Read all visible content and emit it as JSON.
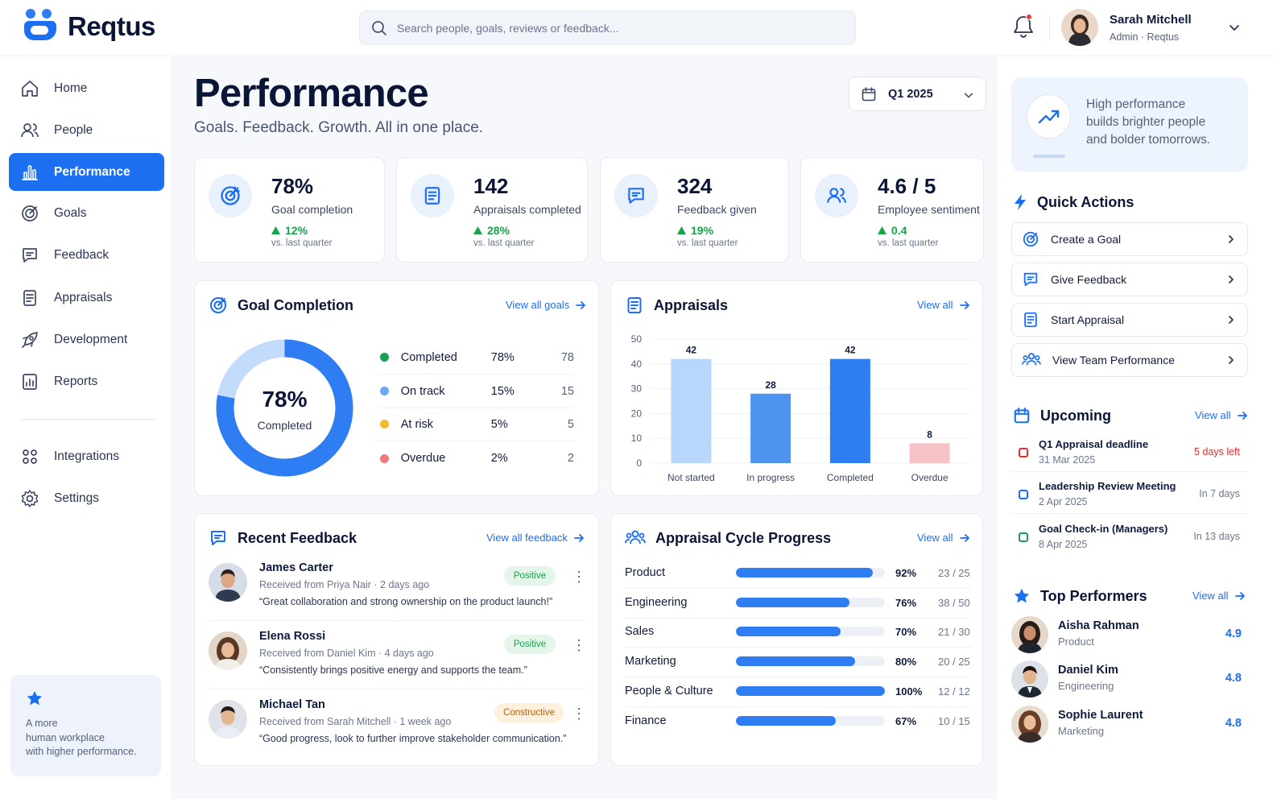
{
  "app": {
    "name": "Reqtus"
  },
  "search": {
    "placeholder": "Search people, goals, reviews or feedback..."
  },
  "user": {
    "name": "Sarah Mitchell",
    "role": "Admin",
    "org": "Reqtus",
    "role_line": "Admin · Reqtus"
  },
  "nav": {
    "items": [
      {
        "label": "Home",
        "icon": "home-icon"
      },
      {
        "label": "People",
        "icon": "people-icon"
      },
      {
        "label": "Performance",
        "icon": "bar-chart-icon",
        "active": true
      },
      {
        "label": "Goals",
        "icon": "target-icon"
      },
      {
        "label": "Feedback",
        "icon": "chat-icon"
      },
      {
        "label": "Appraisals",
        "icon": "document-icon"
      },
      {
        "label": "Development",
        "icon": "rocket-icon"
      },
      {
        "label": "Reports",
        "icon": "report-icon"
      },
      {
        "label": "Integrations",
        "icon": "integrations-icon"
      },
      {
        "label": "Settings",
        "icon": "gear-icon"
      }
    ],
    "promo": "A more\nhuman workplace\nwith higher performance."
  },
  "page": {
    "title": "Performance",
    "subtitle": "Goals. Feedback. Growth. All in one place.",
    "period": "Q1 2025"
  },
  "stats": [
    {
      "value": "78%",
      "label": "Goal completion",
      "delta": "12%",
      "vs": "vs. last quarter",
      "icon": "target-icon"
    },
    {
      "value": "142",
      "label": "Appraisals completed",
      "delta": "28%",
      "vs": "vs. last quarter",
      "icon": "document-icon"
    },
    {
      "value": "324",
      "label": "Feedback given",
      "delta": "19%",
      "vs": "vs. last quarter",
      "icon": "chat-icon"
    },
    {
      "value": "4.6 / 5",
      "label": "Employee sentiment",
      "delta": "0.4",
      "vs": "vs. last quarter",
      "icon": "people-icon"
    }
  ],
  "goal_completion": {
    "title": "Goal Completion",
    "link": "View all goals",
    "center_value": "78%",
    "center_label": "Completed",
    "rows": [
      {
        "name": "Completed",
        "pct": "78%",
        "count": "78",
        "color": "#1f9d55"
      },
      {
        "name": "On track",
        "pct": "15%",
        "count": "15",
        "color": "#6aa8f5"
      },
      {
        "name": "At risk",
        "pct": "5%",
        "count": "5",
        "color": "#f5b82e"
      },
      {
        "name": "Overdue",
        "pct": "2%",
        "count": "2",
        "color": "#f27a7a"
      }
    ],
    "donut": {
      "completed": 78,
      "on_track": 15,
      "at_risk": 5,
      "overdue": 2,
      "primary_color": "#2f7df3",
      "secondary_color": "#c3dcfb"
    }
  },
  "appraisals": {
    "title": "Appraisals",
    "link": "View all"
  },
  "chart_data": {
    "type": "bar",
    "categories": [
      "Not started",
      "In progress",
      "Completed",
      "Overdue"
    ],
    "values": [
      42,
      28,
      42,
      8
    ],
    "colors": [
      "#b9d7fb",
      "#4d93f0",
      "#2f7df3",
      "#f7c3c6"
    ],
    "ylim": [
      0,
      50
    ],
    "yticks": [
      "0",
      "10",
      "20",
      "30",
      "40",
      "50"
    ],
    "title": "",
    "xlabel": "",
    "ylabel": "",
    "grid": true
  },
  "feedback": {
    "title": "Recent Feedback",
    "link": "View all feedback",
    "items": [
      {
        "name": "James Carter",
        "meta": "Received from Priya Nair · 2 days ago",
        "quote": "“Great collaboration and strong ownership on the product launch!”",
        "badge": "Positive"
      },
      {
        "name": "Elena Rossi",
        "meta": "Received from Daniel Kim · 4 days ago",
        "quote": "“Consistently brings positive energy and supports the team.”",
        "badge": "Positive"
      },
      {
        "name": "Michael Tan",
        "meta": "Received from Sarah Mitchell · 1 week ago",
        "quote": "“Good progress, look to further improve stakeholder communication.”",
        "badge": "Constructive"
      }
    ]
  },
  "cycle": {
    "title": "Appraisal Cycle Progress",
    "link": "View all",
    "rows": [
      {
        "name": "Product",
        "pct": "92%",
        "progress": 92,
        "count": "23 / 25"
      },
      {
        "name": "Engineering",
        "pct": "76%",
        "progress": 76,
        "count": "38 / 50"
      },
      {
        "name": "Sales",
        "pct": "70%",
        "progress": 70,
        "count": "21 / 30"
      },
      {
        "name": "Marketing",
        "pct": "80%",
        "progress": 80,
        "count": "20 / 25"
      },
      {
        "name": "People & Culture",
        "pct": "100%",
        "progress": 100,
        "count": "12 / 12"
      },
      {
        "name": "Finance",
        "pct": "67%",
        "progress": 67,
        "count": "10 / 15"
      }
    ]
  },
  "right": {
    "hero": "High performance\nbuilds brighter people\nand bolder tomorrows.",
    "quick_actions_title": "Quick Actions",
    "quick_actions": [
      {
        "label": "Create a Goal",
        "icon": "target-icon"
      },
      {
        "label": "Give Feedback",
        "icon": "chat-icon"
      },
      {
        "label": "Start Appraisal",
        "icon": "document-icon"
      },
      {
        "label": "View Team Performance",
        "icon": "people-icon"
      }
    ],
    "upcoming_title": "Upcoming",
    "upcoming_link": "View all",
    "upcoming": [
      {
        "title": "Q1 Appraisal deadline",
        "date": "31 Mar 2025",
        "due": "5 days left",
        "color": "#e0302f"
      },
      {
        "title": "Leadership Review Meeting",
        "date": "2 Apr 2025",
        "due": "In 7 days",
        "color": "#1d6ff2"
      },
      {
        "title": "Goal Check-in (Managers)",
        "date": "8 Apr 2025",
        "due": "In 13 days",
        "color": "#1f9d55"
      }
    ],
    "top_title": "Top Performers",
    "top_link": "View all",
    "top": [
      {
        "name": "Aisha Rahman",
        "dept": "Product",
        "score": "4.9"
      },
      {
        "name": "Daniel Kim",
        "dept": "Engineering",
        "score": "4.8"
      },
      {
        "name": "Sophie Laurent",
        "dept": "Marketing",
        "score": "4.8"
      }
    ]
  },
  "colors": {
    "accent": "#1d6ff2",
    "positive": "#17a34a",
    "danger": "#e0302f",
    "constructive": "#b5620f"
  }
}
